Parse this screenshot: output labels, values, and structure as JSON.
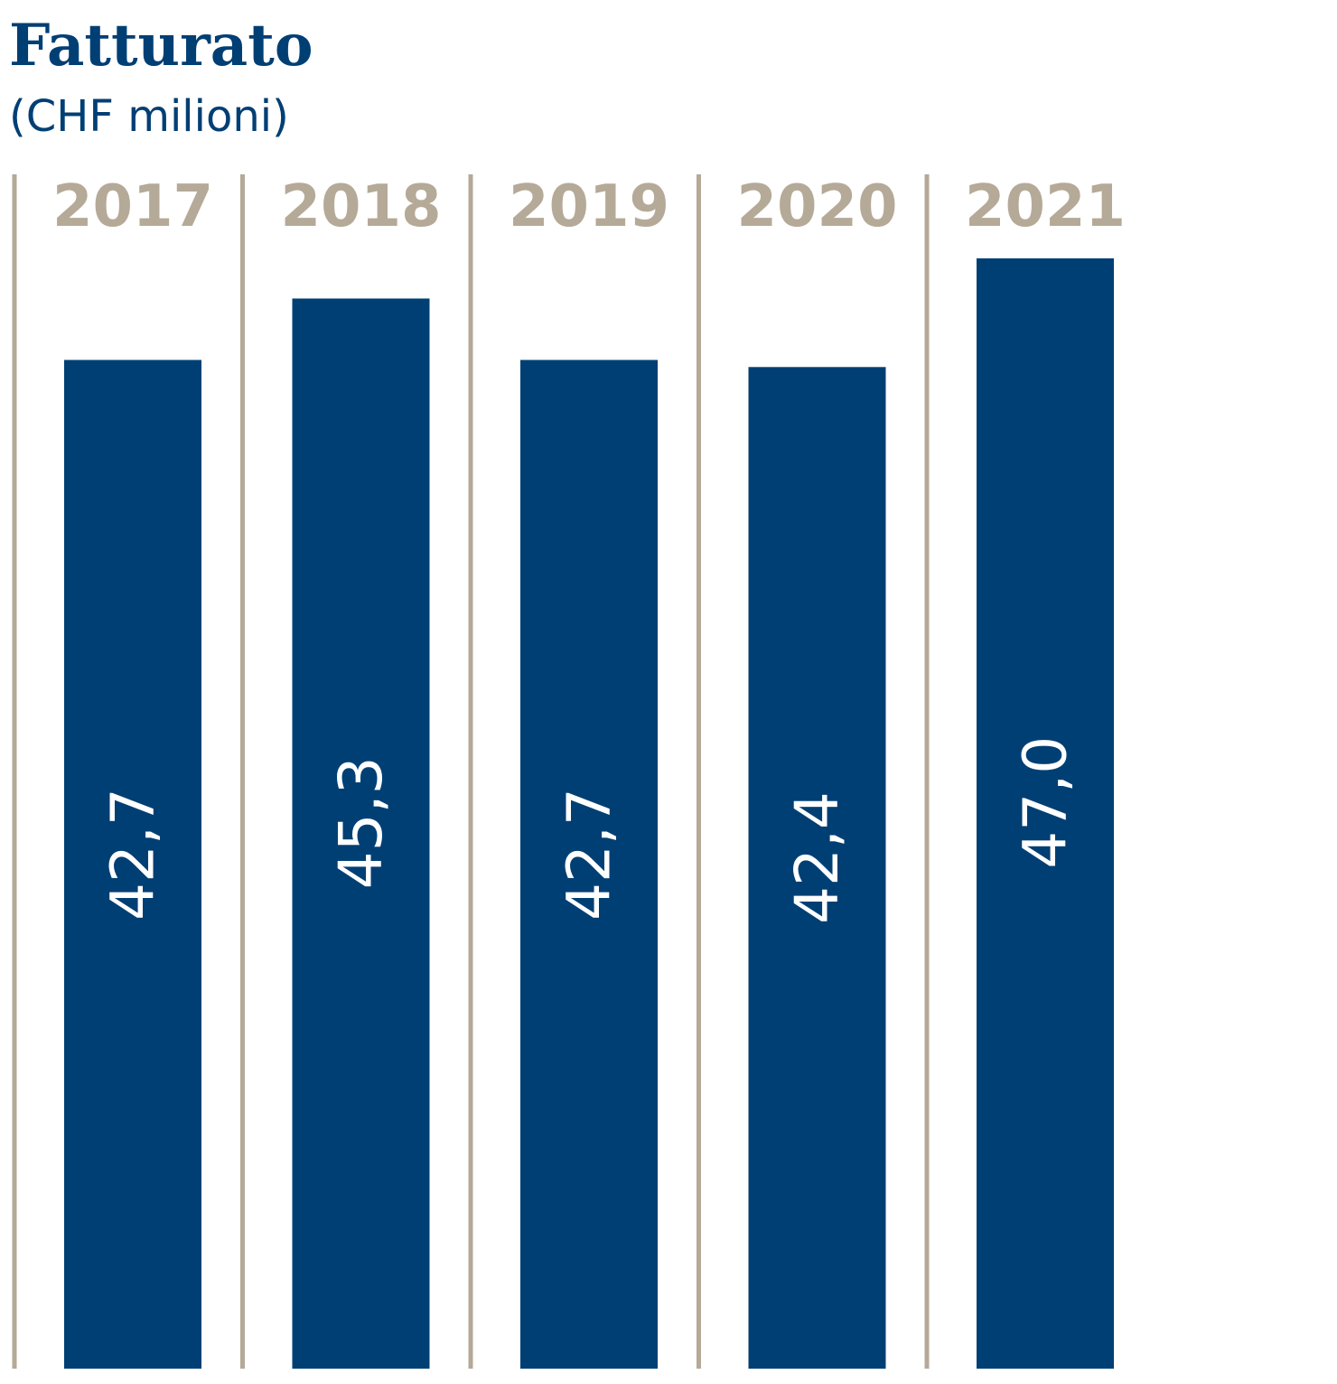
{
  "chart_data": {
    "type": "bar",
    "title": "Fatturato",
    "subtitle": "(CHF milioni)",
    "categories": [
      "2017",
      "2018",
      "2019",
      "2020",
      "2021"
    ],
    "values": [
      42.7,
      45.3,
      42.7,
      42.4,
      47.0
    ],
    "value_labels": [
      "42,7",
      "45,3",
      "42,7",
      "42,4",
      "47,0"
    ],
    "ylim": [
      0,
      49
    ],
    "grid": false,
    "colors": {
      "bar": "#003f74",
      "title": "#003f74",
      "year_label": "#b5a998",
      "separator": "#b5a998",
      "value_label": "#ffffff"
    }
  }
}
